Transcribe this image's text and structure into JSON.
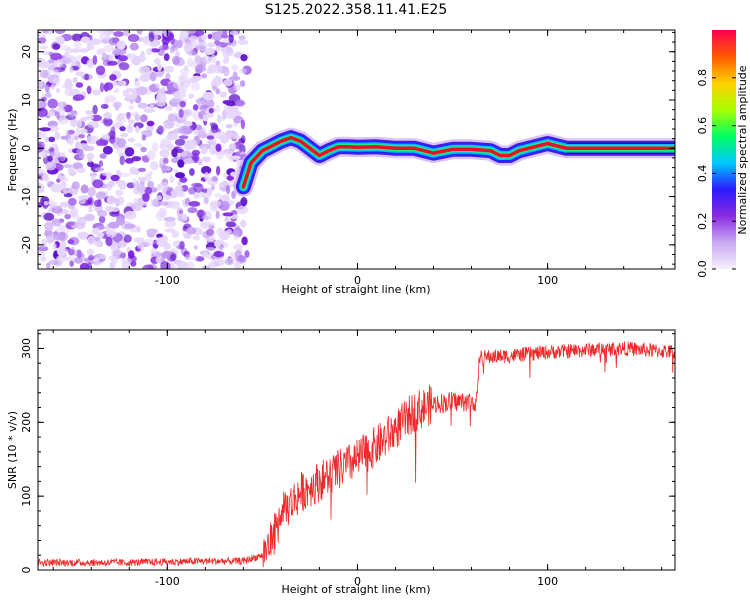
{
  "title": "S125.2022.358.11.41.E25",
  "colors": {
    "snr_line": "#ef2a2a",
    "noise_purple": "#7b1fe0",
    "ridge_red": "#e8102a"
  },
  "colormap": [
    "#f6f0fd",
    "#c9a8f2",
    "#8a2be2",
    "#2a1aff",
    "#00c8ff",
    "#00ff60",
    "#aaff00",
    "#ffd000",
    "#ff5a00",
    "#ff0050"
  ],
  "chart_data": [
    {
      "type": "heatmap",
      "title": "S125.2022.358.11.41.E25",
      "xlabel": "Height of straight line (km)",
      "ylabel": "Frequency (Hz)",
      "xlim": [
        -168,
        167
      ],
      "ylim": [
        -25,
        24.5
      ],
      "x_ticks": [
        -100,
        0,
        100
      ],
      "x_tick_labels": [
        "-100",
        "0",
        "100"
      ],
      "y_ticks": [
        -20,
        -10,
        0,
        10,
        20
      ],
      "y_tick_labels": [
        "-20",
        "-10",
        "0",
        "10",
        "20"
      ],
      "colorbar": {
        "label": "Normalized spectral amplitude",
        "range": [
          0,
          1
        ],
        "ticks": [
          0.0,
          0.2,
          0.4,
          0.6,
          0.8
        ],
        "tick_labels": [
          "0.0",
          "0.2",
          "0.4",
          "0.6",
          "0.8"
        ]
      },
      "noise_region_x": [
        -168,
        -58
      ],
      "ridge": {
        "x": [
          -60,
          -56,
          -50,
          -45,
          -40,
          -35,
          -30,
          -25,
          -20,
          -15,
          -10,
          -5,
          0,
          10,
          20,
          30,
          40,
          50,
          60,
          70,
          75,
          80,
          85,
          90,
          95,
          100,
          105,
          110,
          120,
          140,
          167
        ],
        "freq": [
          -8,
          -3,
          -0.5,
          0.5,
          1.5,
          2.2,
          1.5,
          0,
          -1.5,
          -0.5,
          0.3,
          0.3,
          0.2,
          0.3,
          0,
          0,
          -1,
          -0.2,
          -0.2,
          -0.5,
          -1.5,
          -1.5,
          -0.5,
          0,
          0.5,
          1,
          0.5,
          0,
          0,
          0,
          0
        ]
      }
    },
    {
      "type": "line",
      "xlabel": "Height of straight line (km)",
      "ylabel": "SNR (10 * v/v)",
      "xlim": [
        -168,
        167
      ],
      "ylim": [
        0,
        325
      ],
      "x_ticks": [
        -100,
        0,
        100
      ],
      "x_tick_labels": [
        "-100",
        "0",
        "100"
      ],
      "y_ticks": [
        0,
        100,
        200,
        300
      ],
      "y_tick_labels": [
        "0",
        "100",
        "200",
        "300"
      ],
      "series": [
        {
          "x": [
            -168,
            -120,
            -80,
            -60,
            -50,
            -45,
            -40,
            -35,
            -30,
            -20,
            -10,
            0,
            10,
            20,
            30,
            40,
            50,
            60,
            63,
            64,
            80,
            100,
            120,
            140,
            167
          ],
          "y": [
            10,
            10,
            12,
            12,
            20,
            40,
            75,
            90,
            105,
            120,
            135,
            150,
            168,
            190,
            215,
            225,
            228,
            228,
            228,
            288,
            290,
            295,
            298,
            300,
            295
          ]
        }
      ]
    }
  ]
}
